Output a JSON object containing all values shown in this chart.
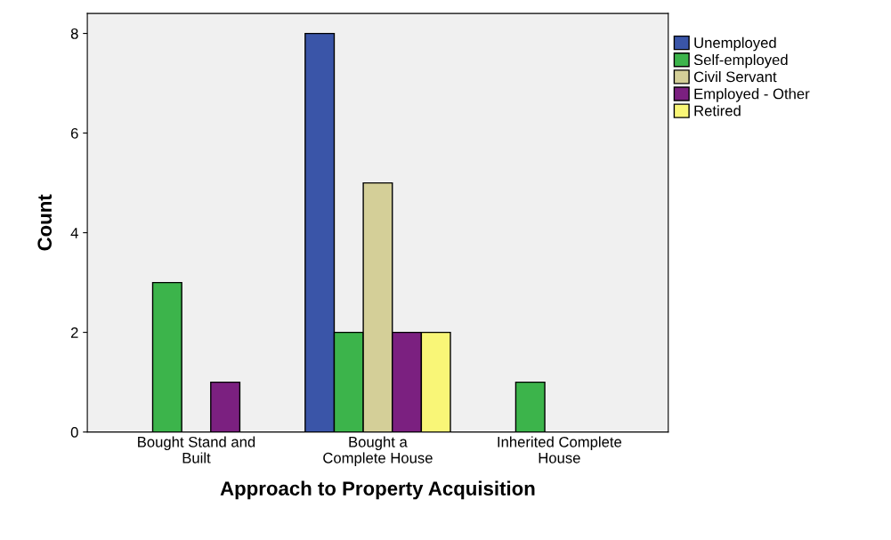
{
  "chart_data": {
    "type": "bar",
    "xlabel": "Approach to Property Acquisition",
    "ylabel": "Count",
    "categories": [
      "Bought Stand and\nBuilt",
      "Bought a\nComplete House",
      "Inherited Complete\nHouse"
    ],
    "series": [
      {
        "name": "Unemployed",
        "color": "#3a55a8",
        "values": [
          null,
          8,
          null
        ]
      },
      {
        "name": "Self-employed",
        "color": "#3cb44b",
        "values": [
          3,
          2,
          1
        ]
      },
      {
        "name": "Civil Servant",
        "color": "#d4cf98",
        "values": [
          null,
          5,
          null
        ]
      },
      {
        "name": "Employed - Other",
        "color": "#7b2080",
        "values": [
          1,
          2,
          null
        ]
      },
      {
        "name": "Retired",
        "color": "#f9f677",
        "values": [
          null,
          2,
          null
        ]
      }
    ],
    "ylim": [
      0,
      8.4
    ],
    "yticks": [
      0,
      2,
      4,
      6,
      8
    ],
    "grid": false,
    "legend": "top right"
  }
}
